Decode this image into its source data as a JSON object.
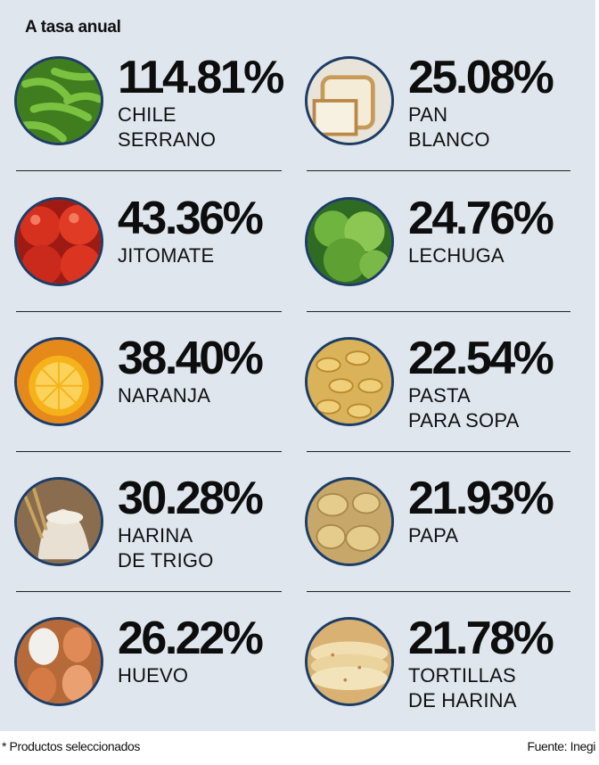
{
  "heading": "A tasa anual",
  "footnote": "* Productos seleccionados",
  "source": "Fuente: Inegi",
  "colors": {
    "panel": "#dfe6ee",
    "photo_border": "#1d3d66",
    "text": "#111111"
  },
  "chart_data": {
    "type": "table",
    "title": "A tasa anual",
    "unit": "%",
    "items": [
      {
        "value": 114.81,
        "value_text": "114.81%",
        "label_lines": [
          "CHILE",
          "SERRANO"
        ],
        "icon": "chile-serrano-photo"
      },
      {
        "value": 25.08,
        "value_text": "25.08%",
        "label_lines": [
          "PAN",
          "BLANCO"
        ],
        "icon": "pan-blanco-photo"
      },
      {
        "value": 43.36,
        "value_text": "43.36%",
        "label_lines": [
          "JITOMATE"
        ],
        "icon": "jitomate-photo"
      },
      {
        "value": 24.76,
        "value_text": "24.76%",
        "label_lines": [
          "LECHUGA"
        ],
        "icon": "lechuga-photo"
      },
      {
        "value": 38.4,
        "value_text": "38.40%",
        "label_lines": [
          "NARANJA"
        ],
        "icon": "naranja-photo"
      },
      {
        "value": 22.54,
        "value_text": "22.54%",
        "label_lines": [
          "PASTA",
          "PARA SOPA"
        ],
        "icon": "pasta-photo"
      },
      {
        "value": 30.28,
        "value_text": "30.28%",
        "label_lines": [
          "HARINA",
          "DE TRIGO"
        ],
        "icon": "harina-photo"
      },
      {
        "value": 21.93,
        "value_text": "21.93%",
        "label_lines": [
          "PAPA"
        ],
        "icon": "papa-photo"
      },
      {
        "value": 26.22,
        "value_text": "26.22%",
        "label_lines": [
          "HUEVO"
        ],
        "icon": "huevo-photo"
      },
      {
        "value": 21.78,
        "value_text": "21.78%",
        "label_lines": [
          "TORTILLAS",
          "DE HARINA"
        ],
        "icon": "tortillas-photo"
      }
    ]
  }
}
